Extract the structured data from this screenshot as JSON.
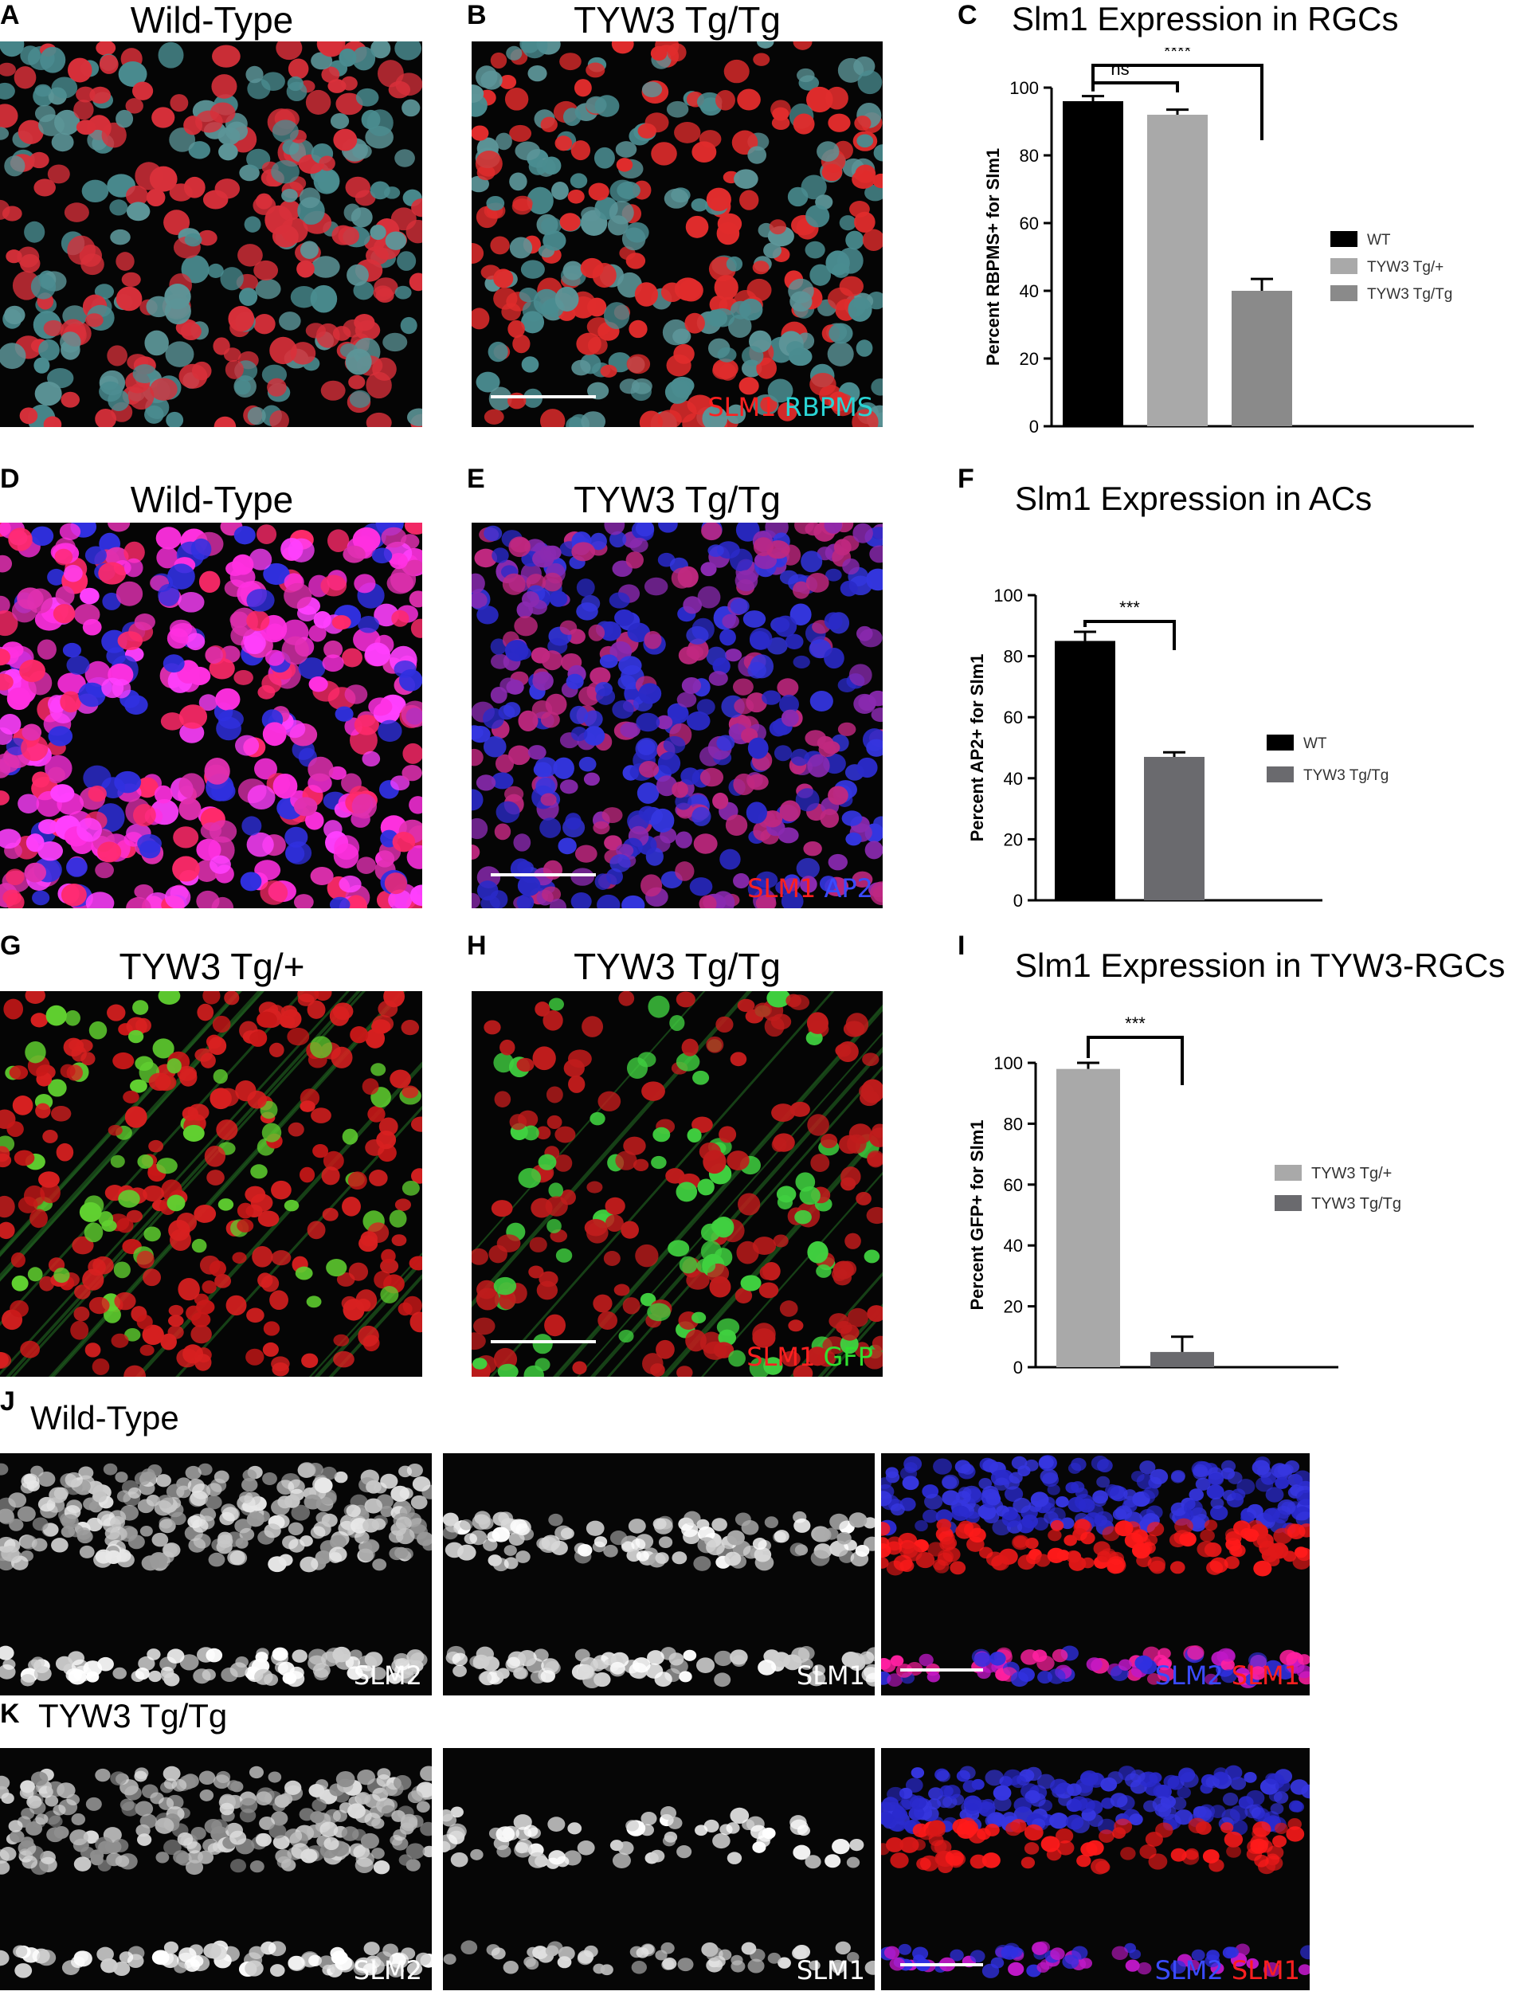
{
  "panels": {
    "A": {
      "label": "A",
      "title": "Wild-Type"
    },
    "B": {
      "label": "B",
      "title": "TYW3 Tg/Tg",
      "stain": [
        {
          "text": "SLM1",
          "color": "#ff2020"
        },
        {
          "text": " RBPMS",
          "color": "#2ad4d4"
        }
      ]
    },
    "C": {
      "label": "C",
      "title": "Slm1 Expression in RGCs"
    },
    "D": {
      "label": "D",
      "title": "Wild-Type"
    },
    "E": {
      "label": "E",
      "title": "TYW3 Tg/Tg",
      "stain": [
        {
          "text": "SLM1",
          "color": "#ff2020"
        },
        {
          "text": " AP2",
          "color": "#3a4bff"
        }
      ]
    },
    "F": {
      "label": "F",
      "title": "Slm1 Expression in ACs"
    },
    "G": {
      "label": "G",
      "title": "TYW3 Tg/+"
    },
    "H": {
      "label": "H",
      "title": "TYW3 Tg/Tg",
      "stain": [
        {
          "text": "SLM1",
          "color": "#ff2020"
        },
        {
          "text": " GFP",
          "color": "#30e030"
        }
      ]
    },
    "I": {
      "label": "I",
      "title": "Slm1 Expression in TYW3-RGCs"
    },
    "J": {
      "label": "J",
      "title": "Wild-Type",
      "row": [
        {
          "stain": [
            {
              "text": "SLM2",
              "color": "#ffffff"
            }
          ]
        },
        {
          "stain": [
            {
              "text": "SLM1",
              "color": "#ffffff"
            }
          ]
        },
        {
          "stain": [
            {
              "text": "SLM2",
              "color": "#3a4bff"
            },
            {
              "text": " SLM1",
              "color": "#ff2020"
            }
          ]
        }
      ]
    },
    "K": {
      "label": "K",
      "title": "TYW3 Tg/Tg",
      "row": [
        {
          "stain": [
            {
              "text": "SLM2",
              "color": "#ffffff"
            }
          ]
        },
        {
          "stain": [
            {
              "text": "SLM1",
              "color": "#ffffff"
            }
          ]
        },
        {
          "stain": [
            {
              "text": "SLM2",
              "color": "#3a4bff"
            },
            {
              "text": " SLM1",
              "color": "#ff2020"
            }
          ]
        }
      ]
    }
  },
  "chart_data": [
    {
      "panel": "C",
      "type": "bar",
      "title": "Slm1 Expression in RGCs",
      "ylabel": "Percent RBPMS+ for Slm1",
      "ylim": [
        0,
        100
      ],
      "yticks": [
        0,
        20,
        40,
        60,
        80,
        100
      ],
      "categories": [
        "WT",
        "TYW3 Tg/+",
        "TYW3 Tg/Tg"
      ],
      "values": [
        96,
        92,
        40
      ],
      "errors": [
        1.5,
        1.5,
        3.5
      ],
      "colors": [
        "#000000",
        "#a9a9a9",
        "#8a8a8a"
      ],
      "legend": [
        {
          "name": "WT",
          "color": "#000000"
        },
        {
          "name": "TYW3 Tg/+",
          "color": "#a9a9a9"
        },
        {
          "name": "TYW3 Tg/Tg",
          "color": "#8a8a8a"
        }
      ],
      "significance": [
        {
          "from": 0,
          "to": 1,
          "label": "ns"
        },
        {
          "from": 0,
          "to": 2,
          "label": "****"
        }
      ]
    },
    {
      "panel": "F",
      "type": "bar",
      "title": "Slm1 Expression in ACs",
      "ylabel": "Percent AP2+ for Slm1",
      "ylim": [
        0,
        100
      ],
      "yticks": [
        0,
        20,
        40,
        60,
        80,
        100
      ],
      "categories": [
        "WT",
        "TYW3 Tg/Tg"
      ],
      "values": [
        85,
        47
      ],
      "errors": [
        3,
        1.5
      ],
      "colors": [
        "#000000",
        "#6a6a6e"
      ],
      "legend": [
        {
          "name": "WT",
          "color": "#000000"
        },
        {
          "name": "TYW3 Tg/Tg",
          "color": "#6a6a6e"
        }
      ],
      "significance": [
        {
          "from": 0,
          "to": 1,
          "label": "***"
        }
      ]
    },
    {
      "panel": "I",
      "type": "bar",
      "title": "Slm1 Expression in TYW3-RGCs",
      "ylabel": "Percent GFP+ for Slm1",
      "ylim": [
        0,
        100
      ],
      "yticks": [
        0,
        20,
        40,
        60,
        80,
        100
      ],
      "categories": [
        "TYW3 Tg/+",
        "TYW3 Tg/Tg"
      ],
      "values": [
        98,
        5
      ],
      "errors": [
        2,
        5
      ],
      "colors": [
        "#a9a9a9",
        "#6a6a6e"
      ],
      "legend": [
        {
          "name": "TYW3 Tg/+",
          "color": "#a9a9a9"
        },
        {
          "name": "TYW3 Tg/Tg",
          "color": "#6a6a6e"
        }
      ],
      "significance": [
        {
          "from": 0,
          "to": 1,
          "label": "***"
        }
      ]
    }
  ]
}
